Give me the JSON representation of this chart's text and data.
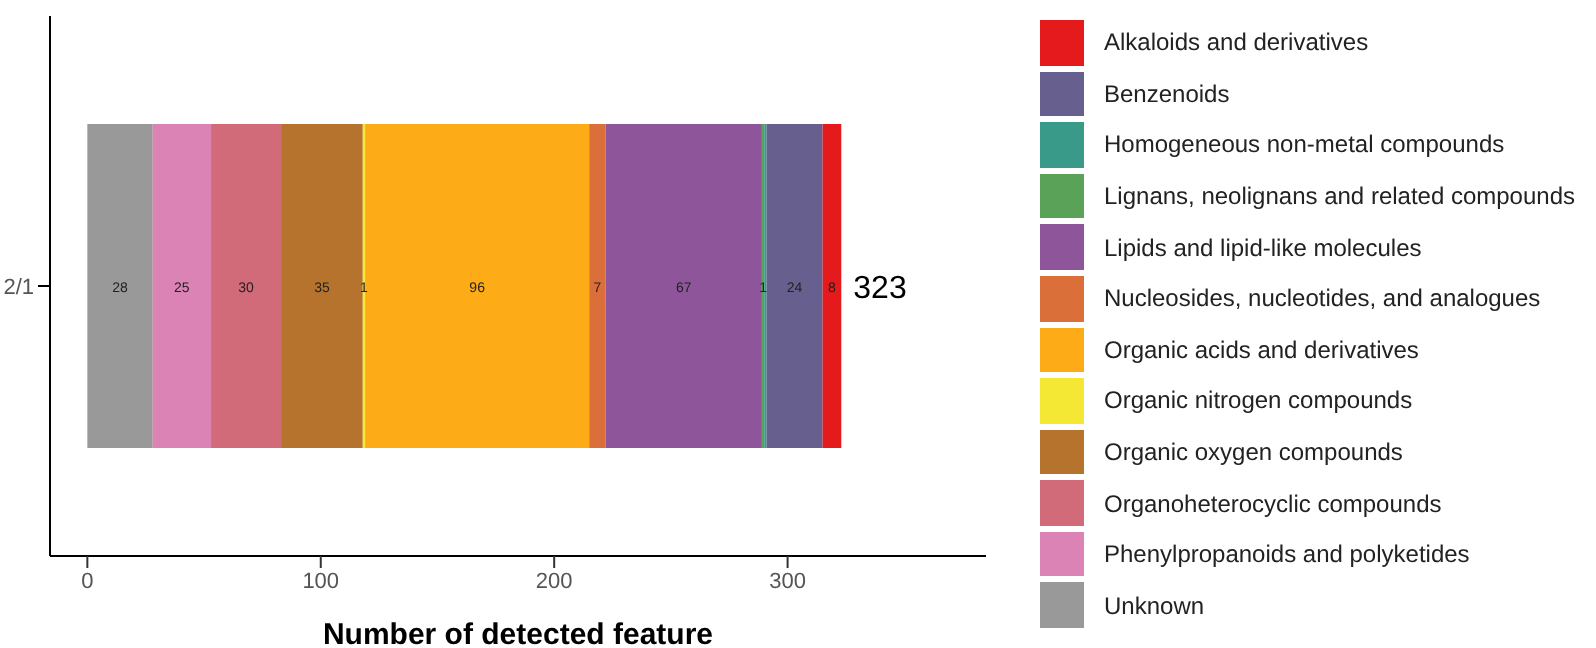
{
  "chart_data": {
    "type": "bar",
    "orientation": "horizontal",
    "stacked": true,
    "categories": [
      "2/1"
    ],
    "xlabel": "Number of detected feature",
    "xlim": [
      -16,
      385
    ],
    "xticks": [
      0,
      100,
      200,
      300
    ],
    "grid": false,
    "legend": "right",
    "totals": [
      "323"
    ],
    "series": [
      {
        "name": "Unknown",
        "color": "#999999",
        "values": [
          28
        ],
        "value_labels": [
          "28"
        ]
      },
      {
        "name": "Phenylpropanoids and polyketides",
        "color": "#db83b5",
        "values": [
          25
        ],
        "value_labels": [
          "25"
        ]
      },
      {
        "name": "Organoheterocyclic compounds",
        "color": "#d16b79",
        "values": [
          30
        ],
        "value_labels": [
          "30"
        ]
      },
      {
        "name": "Organic oxygen compounds",
        "color": "#b5732d",
        "values": [
          35
        ],
        "value_labels": [
          "35"
        ]
      },
      {
        "name": "Organic nitrogen compounds",
        "color": "#f4e834",
        "values": [
          1
        ],
        "value_labels": [
          "1"
        ]
      },
      {
        "name": "Organic acids and derivatives",
        "color": "#fdab17",
        "values": [
          96
        ],
        "value_labels": [
          "96"
        ]
      },
      {
        "name": "Nucleosides, nucleotides, and analogues",
        "color": "#da6f3a",
        "values": [
          7
        ],
        "value_labels": [
          "7"
        ]
      },
      {
        "name": "Lipids and lipid-like molecules",
        "color": "#8f559b",
        "values": [
          67
        ],
        "value_labels": [
          "67"
        ]
      },
      {
        "name": "Lignans, neolignans and related compounds",
        "color": "#5aa257",
        "values": [
          1
        ],
        "value_labels": [
          "1"
        ]
      },
      {
        "name": "Homogeneous non-metal compounds",
        "color": "#3a9a8a",
        "values": [
          1
        ],
        "value_labels": [
          null
        ]
      },
      {
        "name": "Benzenoids",
        "color": "#67608f",
        "values": [
          24
        ],
        "value_labels": [
          "24"
        ]
      },
      {
        "name": "Alkaloids and derivatives",
        "color": "#e41a1c",
        "values": [
          8
        ],
        "value_labels": [
          "8"
        ]
      }
    ]
  }
}
